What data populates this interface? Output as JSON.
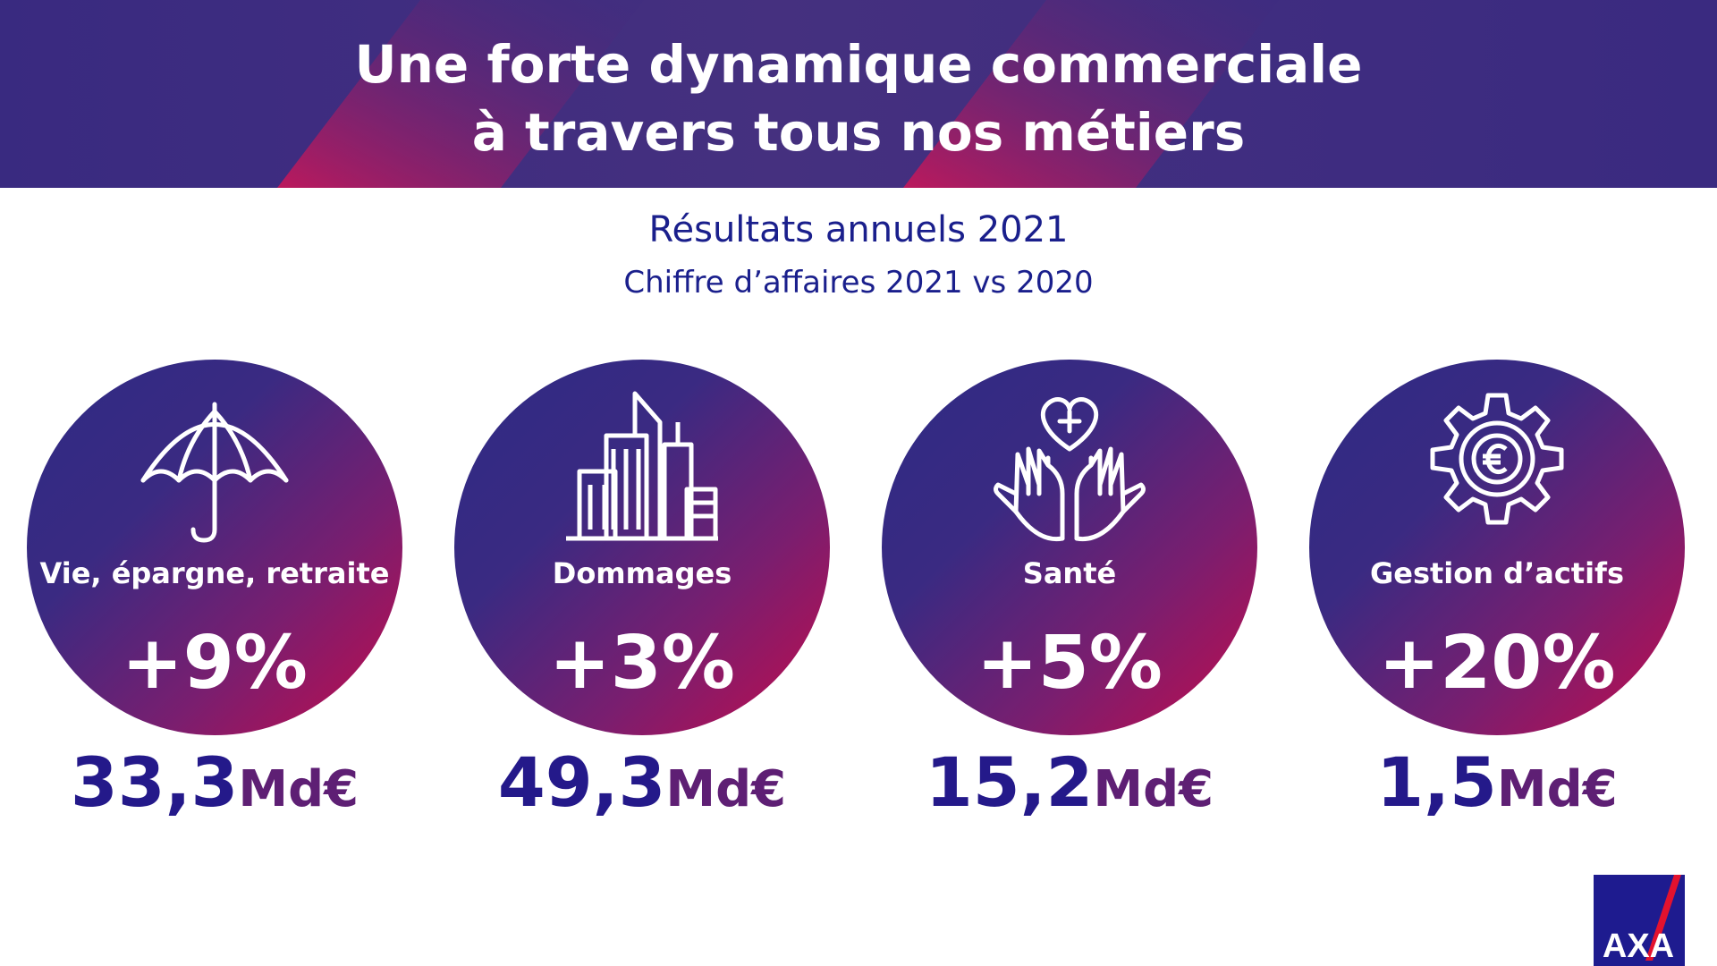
{
  "header": {
    "title_line1": "Une forte dynamique commerciale",
    "title_line2": "à travers tous nos métiers"
  },
  "subtitle": {
    "main": "Résultats annuels 2021",
    "sub": "Chiffre d’affaires 2021 vs 2020"
  },
  "cards": [
    {
      "label": "Vie, épargne, retraite",
      "growth": "+9%",
      "amount": "33,3",
      "unit": "Md€",
      "icon": "umbrella-icon"
    },
    {
      "label": "Dommages",
      "growth": "+3%",
      "amount": "49,3",
      "unit": "Md€",
      "icon": "buildings-icon"
    },
    {
      "label": "Santé",
      "growth": "+5%",
      "amount": "15,2",
      "unit": "Md€",
      "icon": "heart-hands-icon"
    },
    {
      "label": "Gestion d’actifs",
      "growth": "+20%",
      "amount": "1,5",
      "unit": "Md€",
      "icon": "euro-gear-icon"
    }
  ],
  "logo": {
    "text": "AXA",
    "color": "#1e1b8f",
    "accent": "#e3122e"
  },
  "colors": {
    "navy": "#24198a",
    "magenta": "#c30c4c",
    "purple": "#5e1f74"
  }
}
